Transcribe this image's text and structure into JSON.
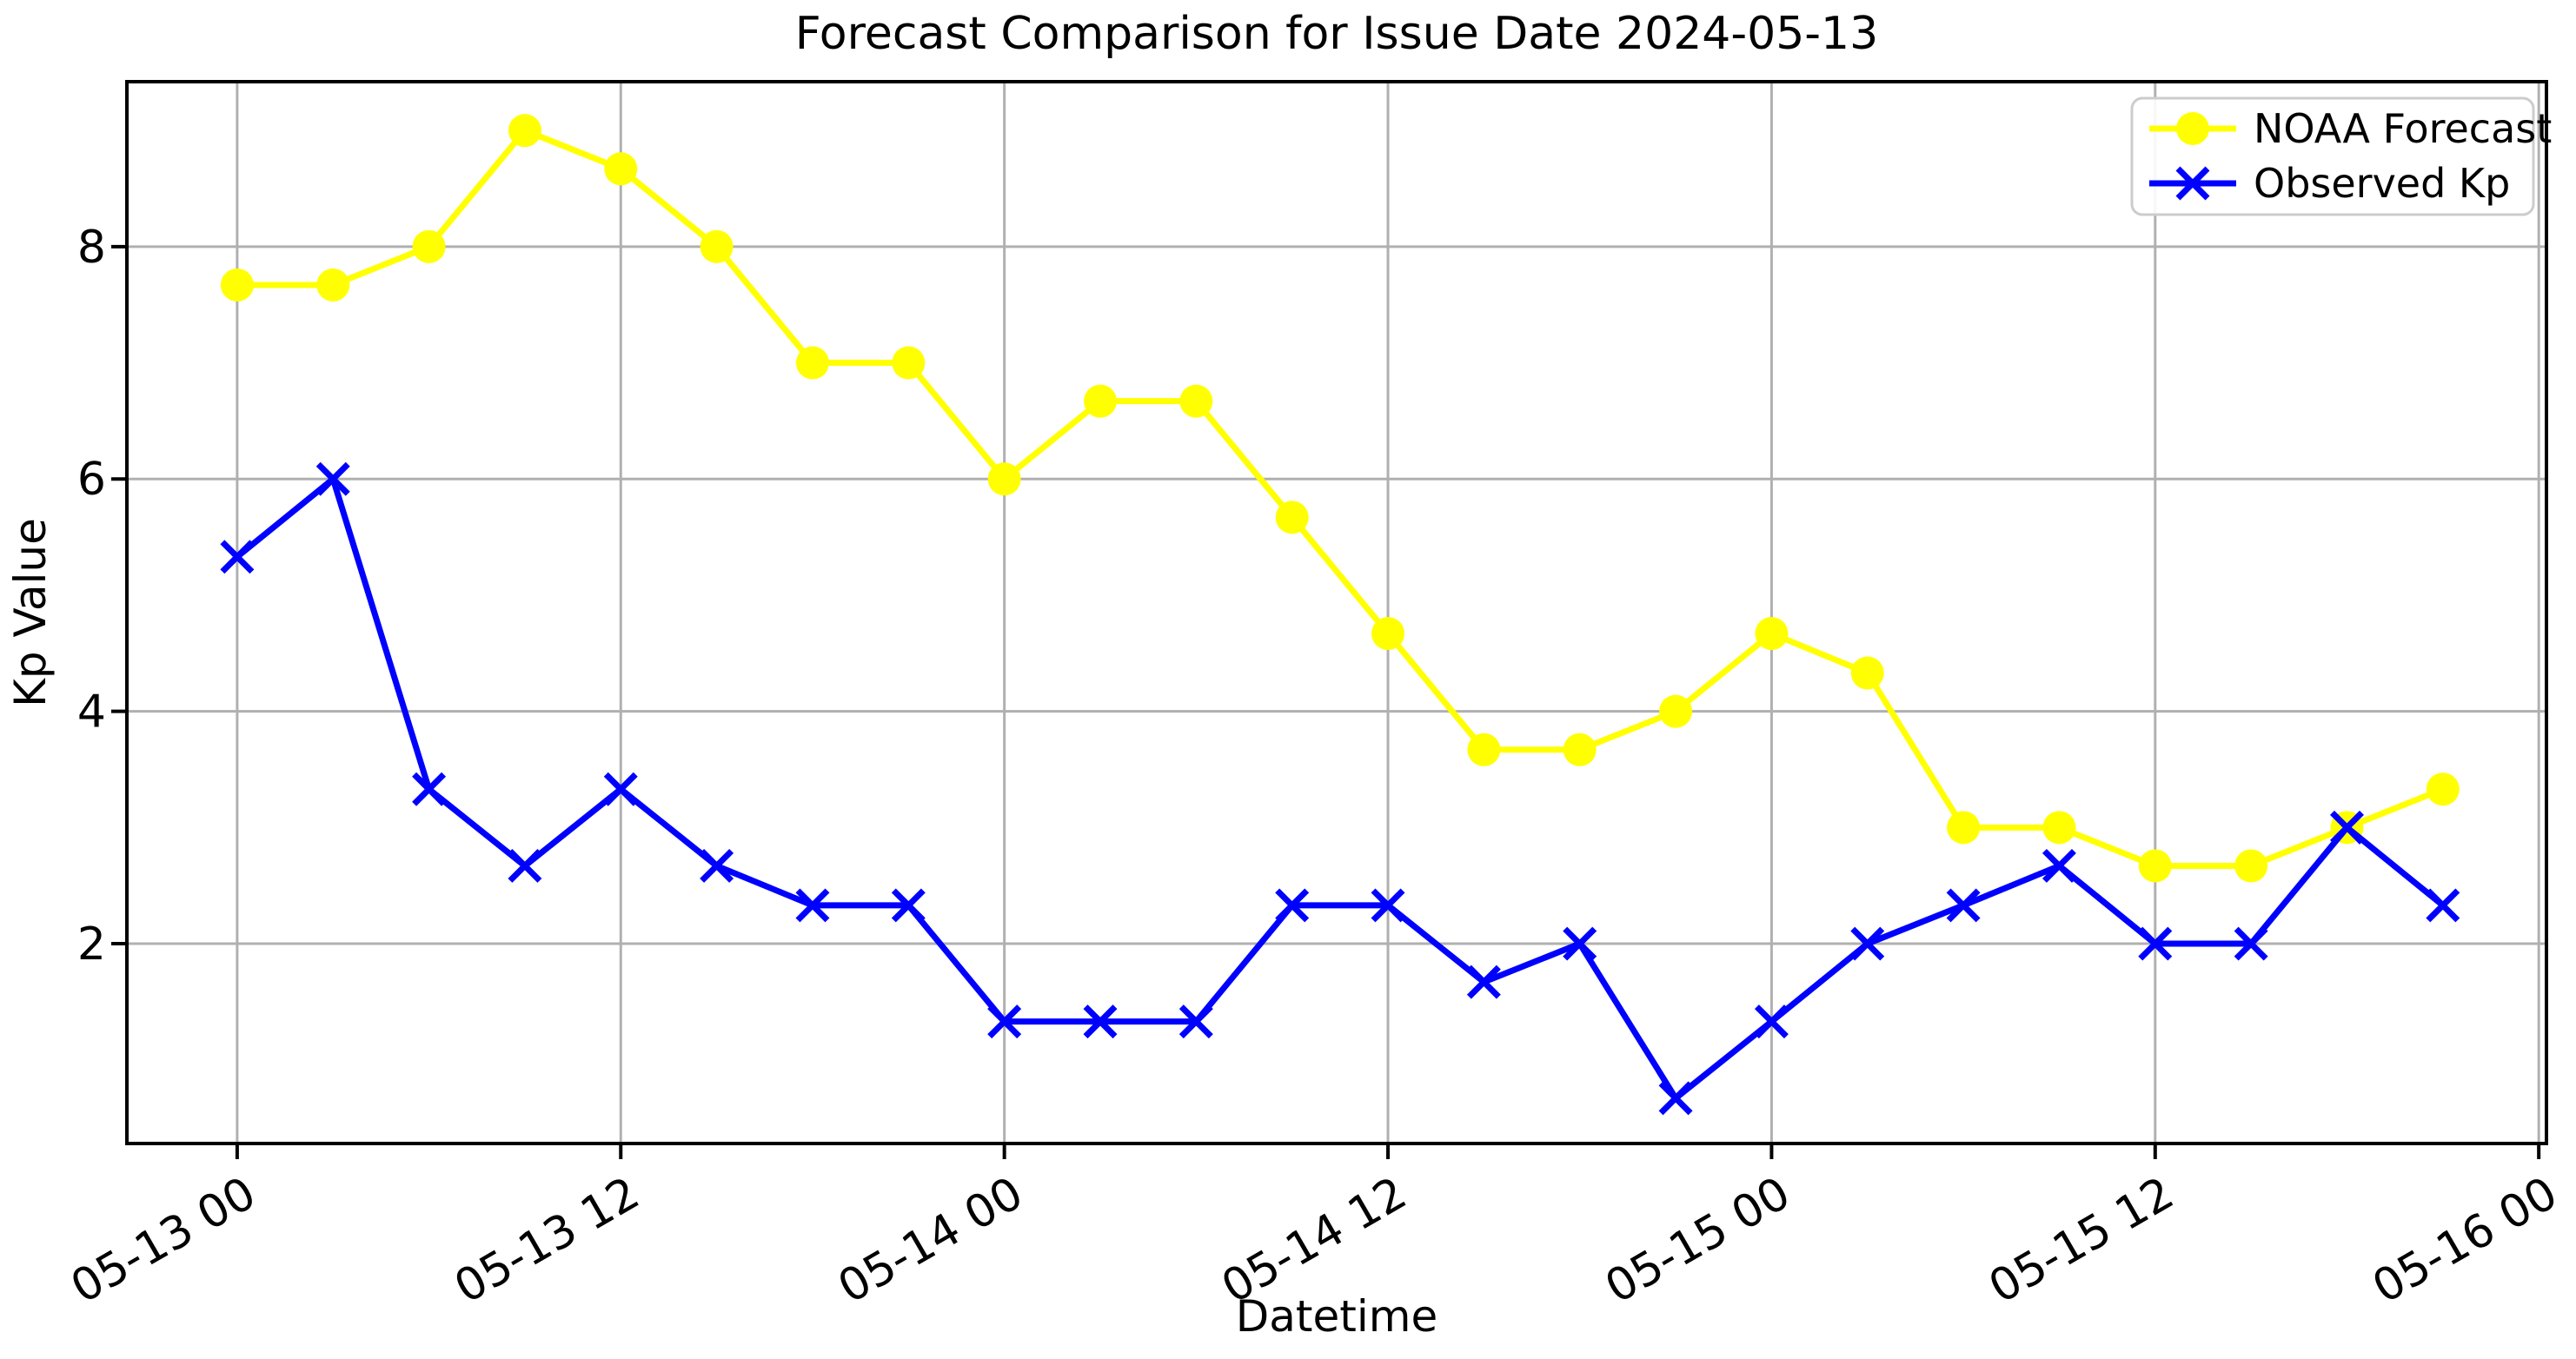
{
  "title": "Forecast Comparison for Issue Date 2024-05-13",
  "chart_data": {
    "type": "line",
    "title": "Forecast Comparison for Issue Date 2024-05-13",
    "xlabel": "Datetime",
    "ylabel": "Kp Value",
    "timestamps": [
      "05-13 00",
      "05-13 03",
      "05-13 06",
      "05-13 09",
      "05-13 12",
      "05-13 15",
      "05-13 18",
      "05-13 21",
      "05-14 00",
      "05-14 03",
      "05-14 06",
      "05-14 09",
      "05-14 12",
      "05-14 15",
      "05-14 18",
      "05-14 21",
      "05-15 00",
      "05-15 03",
      "05-15 06",
      "05-15 09",
      "05-15 12",
      "05-15 15",
      "05-15 18",
      "05-15 21"
    ],
    "series": [
      {
        "name": "NOAA Forecast",
        "color": "#ffff00",
        "marker": "circle",
        "values": [
          7.67,
          7.67,
          8.0,
          9.0,
          8.67,
          8.0,
          7.0,
          7.0,
          6.0,
          6.67,
          6.67,
          5.67,
          4.67,
          3.67,
          3.67,
          4.0,
          4.67,
          4.33,
          3.0,
          3.0,
          2.67,
          2.67,
          3.0,
          3.33
        ]
      },
      {
        "name": "Observed Kp",
        "color": "#0000ff",
        "marker": "x",
        "values": [
          5.33,
          6.0,
          3.33,
          2.67,
          3.33,
          2.67,
          2.33,
          2.33,
          1.33,
          1.33,
          1.33,
          2.33,
          2.33,
          1.67,
          2.0,
          0.67,
          1.33,
          2.0,
          2.33,
          2.67,
          2.0,
          2.0,
          3.0,
          2.33
        ]
      }
    ],
    "x_tick_indices": [
      0,
      4,
      8,
      12,
      16,
      20,
      24
    ],
    "x_tick_labels": [
      "05-13 00",
      "05-13 12",
      "05-14 00",
      "05-14 12",
      "05-15 00",
      "05-15 12",
      "05-16 00"
    ],
    "y_ticks": [
      2,
      4,
      6,
      8
    ],
    "ylim": [
      0.28,
      9.42
    ],
    "x_index_range": [
      -1.15,
      24.08
    ],
    "grid": true,
    "grid_color": "#b0b0b0",
    "axis_color": "#000000",
    "background": "#ffffff",
    "legend_position": "upper right",
    "legend": {
      "entries": [
        "NOAA Forecast",
        "Observed Kp"
      ],
      "border_color": "#cccccc"
    }
  }
}
